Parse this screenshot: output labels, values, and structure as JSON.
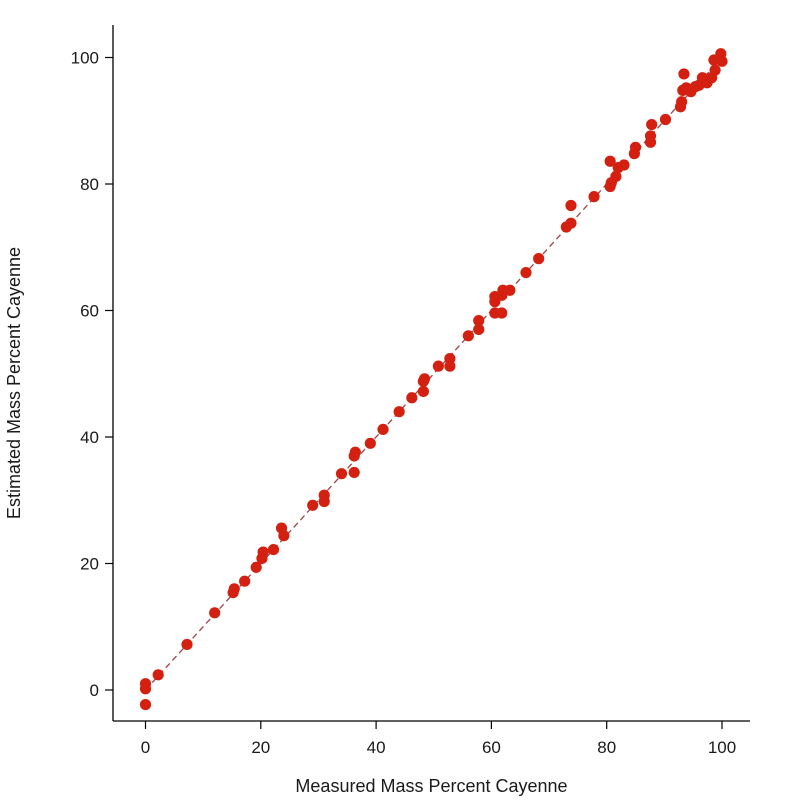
{
  "chart_data": {
    "type": "scatter",
    "xlabel": "Measured Mass Percent Cayenne",
    "ylabel": "Estimated Mass Percent Cayenne",
    "xlim": [
      -6,
      105
    ],
    "ylim": [
      -5,
      106
    ],
    "xticks": [
      0,
      20,
      40,
      60,
      80,
      100
    ],
    "yticks": [
      0,
      20,
      40,
      60,
      80,
      100
    ],
    "grid": false,
    "legend": "none",
    "reference_line": {
      "style": "dashed",
      "color": "#a0404a",
      "from": [
        0,
        0
      ],
      "to": [
        100,
        100
      ]
    },
    "point_color": "#d42010",
    "points": [
      [
        0,
        1.0
      ],
      [
        0,
        0.2
      ],
      [
        0,
        -2.3
      ],
      [
        2.2,
        2.4
      ],
      [
        7.2,
        7.2
      ],
      [
        12,
        12.2
      ],
      [
        15.2,
        15.4
      ],
      [
        15.4,
        16.0
      ],
      [
        17.2,
        17.2
      ],
      [
        19.2,
        19.4
      ],
      [
        20.2,
        20.8
      ],
      [
        20.4,
        21.8
      ],
      [
        22.2,
        22.2
      ],
      [
        23.6,
        25.6
      ],
      [
        24.0,
        24.4
      ],
      [
        29.0,
        29.2
      ],
      [
        31.0,
        29.8
      ],
      [
        31.0,
        30.8
      ],
      [
        34.0,
        34.2
      ],
      [
        36.2,
        34.4
      ],
      [
        36.2,
        37.0
      ],
      [
        36.4,
        37.6
      ],
      [
        39.0,
        39.0
      ],
      [
        41.2,
        41.2
      ],
      [
        44.0,
        44.0
      ],
      [
        46.2,
        46.2
      ],
      [
        48.2,
        47.2
      ],
      [
        48.2,
        48.8
      ],
      [
        48.4,
        49.2
      ],
      [
        50.8,
        51.2
      ],
      [
        52.8,
        51.2
      ],
      [
        52.8,
        52.4
      ],
      [
        56.0,
        56.0
      ],
      [
        57.8,
        57.0
      ],
      [
        57.8,
        58.4
      ],
      [
        60.6,
        59.6
      ],
      [
        60.6,
        61.4
      ],
      [
        60.6,
        62.2
      ],
      [
        61.8,
        59.6
      ],
      [
        61.8,
        62.4
      ],
      [
        62.0,
        63.2
      ],
      [
        63.2,
        63.2
      ],
      [
        66.0,
        66.0
      ],
      [
        68.2,
        68.2
      ],
      [
        73.0,
        73.2
      ],
      [
        73.8,
        73.8
      ],
      [
        73.8,
        76.6
      ],
      [
        77.8,
        78.0
      ],
      [
        80.6,
        79.6
      ],
      [
        80.8,
        80.2
      ],
      [
        80.6,
        83.6
      ],
      [
        81.6,
        81.2
      ],
      [
        82.0,
        82.6
      ],
      [
        83.0,
        83.0
      ],
      [
        84.8,
        84.8
      ],
      [
        85.0,
        85.8
      ],
      [
        87.6,
        86.6
      ],
      [
        87.6,
        87.6
      ],
      [
        87.8,
        89.4
      ],
      [
        90.2,
        90.2
      ],
      [
        92.8,
        92.2
      ],
      [
        93.0,
        93.0
      ],
      [
        93.2,
        94.8
      ],
      [
        93.4,
        97.4
      ],
      [
        93.8,
        95.2
      ],
      [
        94.6,
        94.6
      ],
      [
        95.4,
        95.4
      ],
      [
        96.0,
        95.6
      ],
      [
        96.6,
        96.8
      ],
      [
        97.4,
        96.0
      ],
      [
        98.2,
        96.8
      ],
      [
        98.6,
        99.6
      ],
      [
        98.8,
        98.0
      ],
      [
        99.6,
        99.8
      ],
      [
        99.8,
        100.6
      ],
      [
        100.0,
        99.4
      ]
    ]
  }
}
